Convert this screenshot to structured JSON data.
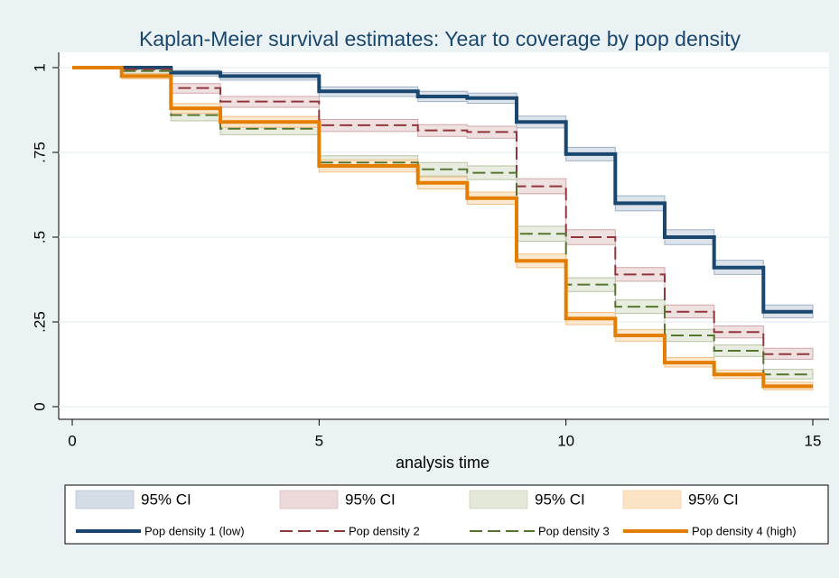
{
  "chart_data": {
    "type": "step",
    "title": "Kaplan-Meier survival estimates: Year to coverage by pop density",
    "x_label": "analysis time",
    "x": [
      0,
      1,
      2,
      3,
      4,
      5,
      6,
      7,
      8,
      9,
      10,
      11,
      12,
      13,
      14,
      15
    ],
    "xlim": [
      0,
      15
    ],
    "xticks": [
      0,
      5,
      10,
      15
    ],
    "ylim": [
      0,
      1
    ],
    "yticks": [
      0,
      {
        "value": 0.25,
        "label": ".25"
      },
      {
        "value": 0.5,
        "label": ".5"
      },
      {
        "value": 0.75,
        "label": ".75"
      },
      1
    ],
    "grid": true,
    "legend_position": "bottom",
    "series": [
      {
        "name": "Pop density 1 (low)",
        "color": "#1a476f",
        "line_width": 4,
        "dashed": false,
        "ci_label": "95% CI",
        "ci_color": "#d4dce6",
        "ci_edge": "#9fb0c4",
        "values": [
          1,
          1,
          0.985,
          0.975,
          0.975,
          0.93,
          0.93,
          0.915,
          0.91,
          0.84,
          0.745,
          0.6,
          0.5,
          0.41,
          0.28,
          0.28
        ],
        "ci_lower": [
          1,
          1,
          0.975,
          0.963,
          0.963,
          0.915,
          0.915,
          0.9,
          0.895,
          0.822,
          0.725,
          0.578,
          0.478,
          0.39,
          0.262,
          0.262
        ],
        "ci_upper": [
          1,
          1,
          0.992,
          0.985,
          0.985,
          0.943,
          0.943,
          0.93,
          0.925,
          0.857,
          0.765,
          0.622,
          0.522,
          0.432,
          0.3,
          0.3
        ]
      },
      {
        "name": "Pop density 2",
        "color": "#90353b",
        "line_width": 2,
        "dashed": true,
        "ci_label": "95% CI",
        "ci_color": "#ecd9da",
        "ci_edge": "#cfa6a9",
        "values": [
          1,
          0.995,
          0.94,
          0.9,
          0.9,
          0.83,
          0.83,
          0.815,
          0.81,
          0.65,
          0.5,
          0.39,
          0.28,
          0.22,
          0.155,
          0.155
        ],
        "ci_lower": [
          1,
          0.99,
          0.925,
          0.883,
          0.883,
          0.812,
          0.812,
          0.797,
          0.792,
          0.628,
          0.478,
          0.37,
          0.262,
          0.203,
          0.14,
          0.14
        ],
        "ci_upper": [
          1,
          0.998,
          0.953,
          0.915,
          0.915,
          0.847,
          0.847,
          0.832,
          0.827,
          0.672,
          0.522,
          0.41,
          0.3,
          0.238,
          0.172,
          0.172
        ]
      },
      {
        "name": "Pop density 3",
        "color": "#55752f",
        "line_width": 2,
        "dashed": true,
        "ci_label": "95% CI",
        "ci_color": "#e3e8d9",
        "ci_edge": "#b8c4a2",
        "values": [
          1,
          0.99,
          0.86,
          0.82,
          0.82,
          0.72,
          0.72,
          0.7,
          0.69,
          0.51,
          0.36,
          0.295,
          0.21,
          0.165,
          0.095,
          0.095
        ],
        "ci_lower": [
          1,
          0.983,
          0.843,
          0.802,
          0.802,
          0.7,
          0.7,
          0.68,
          0.67,
          0.488,
          0.34,
          0.275,
          0.192,
          0.148,
          0.082,
          0.082
        ],
        "ci_upper": [
          1,
          0.995,
          0.876,
          0.837,
          0.837,
          0.74,
          0.74,
          0.72,
          0.71,
          0.532,
          0.38,
          0.315,
          0.228,
          0.182,
          0.11,
          0.11
        ]
      },
      {
        "name": "Pop density 4 (high)",
        "color": "#e37e00",
        "line_width": 4,
        "dashed": false,
        "ci_label": "95% CI",
        "ci_color": "#fbe3c6",
        "ci_edge": "#f2bf85",
        "values": [
          1,
          0.975,
          0.88,
          0.84,
          0.84,
          0.71,
          0.71,
          0.66,
          0.615,
          0.43,
          0.26,
          0.21,
          0.13,
          0.095,
          0.06,
          0.06
        ],
        "ci_lower": [
          1,
          0.967,
          0.865,
          0.824,
          0.824,
          0.692,
          0.692,
          0.642,
          0.597,
          0.41,
          0.242,
          0.193,
          0.117,
          0.083,
          0.05,
          0.05
        ],
        "ci_upper": [
          1,
          0.982,
          0.894,
          0.856,
          0.856,
          0.728,
          0.728,
          0.678,
          0.633,
          0.45,
          0.278,
          0.227,
          0.145,
          0.108,
          0.072,
          0.072
        ]
      }
    ]
  }
}
